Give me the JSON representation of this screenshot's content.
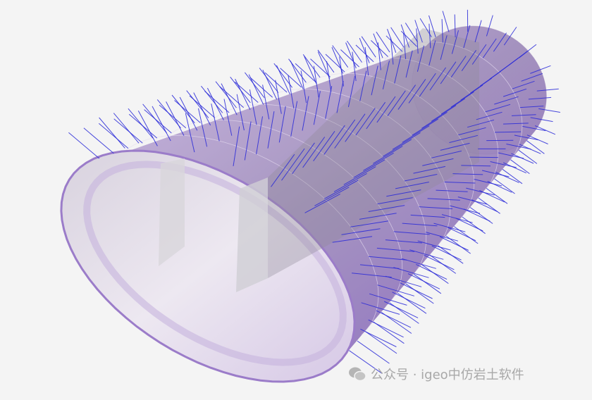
{
  "watermark": {
    "text": "公众号 · igeo中仿岩土软件",
    "icon": "wechat-icon"
  },
  "colors": {
    "background": "#f4f4f4",
    "lining": "#b79ad6",
    "lining_dark": "#6a3fb0",
    "bolt": "#2a2ad8",
    "interior": "#e8e2ee"
  }
}
